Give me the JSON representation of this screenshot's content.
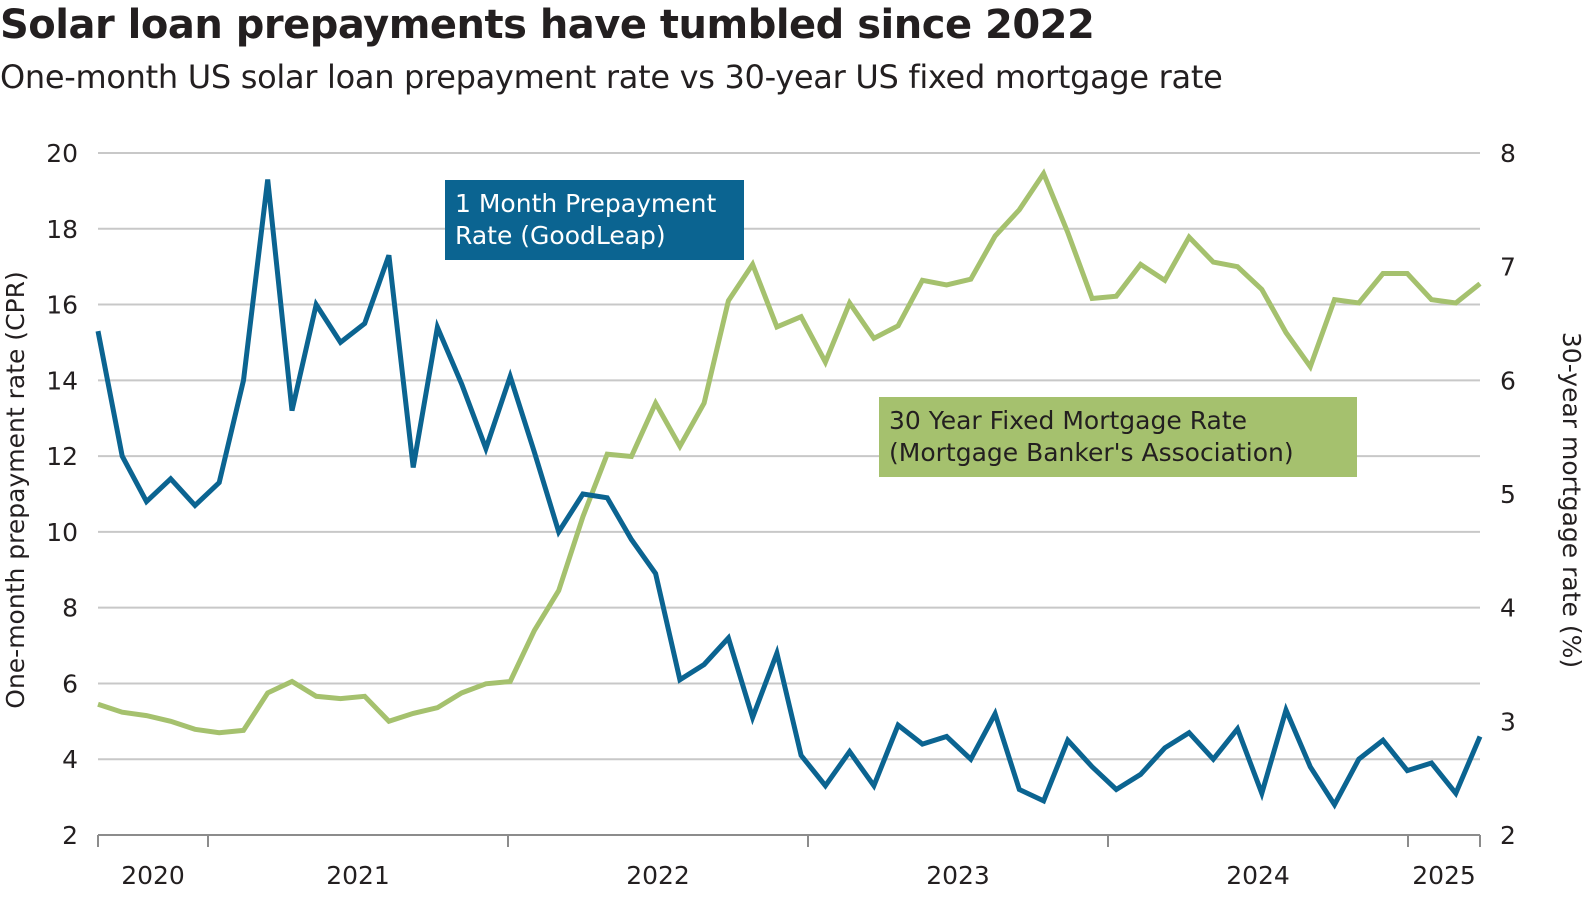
{
  "title": "Solar loan prepayments have tumbled since 2022",
  "subtitle": "One-month US solar loan prepayment rate vs 30-year US fixed mortgage rate",
  "legend": {
    "prepayment": "1 Month Prepayment\nRate (GoodLeap)",
    "mortgage": "30 Year Fixed Mortgage Rate\n(Mortgage Banker's Association)"
  },
  "colors": {
    "prepayment": "#0b6491",
    "mortgage": "#a5c16e",
    "grid": "#c8c8c8",
    "axis": "#8c8c8c"
  },
  "chart_data": {
    "type": "line",
    "ylabel_left": "One-month prepayment rate (CPR)",
    "ylabel_right": "30-year mortgage rate (%)",
    "ylim_left": [
      2,
      20
    ],
    "ylim_right": [
      2,
      8
    ],
    "yticks_left": [
      "20",
      "18",
      "16",
      "14",
      "12",
      "10",
      "8",
      "6",
      "4",
      "2"
    ],
    "yticks_right": [
      "8",
      "7",
      "6",
      "5",
      "4",
      "3",
      "2"
    ],
    "xticks": [
      "2020",
      "2021",
      "2022",
      "2023",
      "2024",
      "2025"
    ],
    "grid": true,
    "series": [
      {
        "name": "1 Month Prepayment Rate (GoodLeap)",
        "axis": "left",
        "values": [
          15.3,
          12.0,
          10.8,
          11.4,
          10.7,
          11.3,
          14.0,
          19.3,
          13.2,
          16.0,
          15.0,
          15.5,
          17.3,
          11.7,
          15.4,
          13.9,
          12.2,
          14.1,
          12.1,
          10.0,
          11.0,
          10.9,
          9.8,
          8.9,
          6.1,
          6.5,
          7.2,
          5.1,
          6.8,
          4.1,
          3.3,
          4.2,
          3.3,
          4.9,
          4.4,
          4.6,
          4.0,
          5.2,
          3.2,
          2.9,
          4.5,
          3.8,
          3.2,
          3.6,
          4.3,
          4.7,
          4.0,
          4.8,
          3.1,
          5.3,
          3.8,
          2.8,
          4.0,
          4.5,
          3.7,
          3.9,
          3.1,
          4.6
        ]
      },
      {
        "name": "30 Year Fixed Mortgage Rate (Mortgage Banker's Association)",
        "axis": "right",
        "values": [
          3.15,
          3.08,
          3.05,
          3.0,
          2.93,
          2.9,
          2.92,
          3.25,
          3.35,
          3.22,
          3.2,
          3.22,
          3.0,
          3.07,
          3.12,
          3.25,
          3.33,
          3.35,
          3.8,
          4.15,
          4.8,
          5.35,
          5.33,
          5.8,
          5.42,
          5.8,
          6.7,
          7.02,
          6.47,
          6.56,
          6.16,
          6.68,
          6.37,
          6.48,
          6.88,
          6.84,
          6.89,
          7.27,
          7.5,
          7.82,
          7.3,
          6.72,
          6.74,
          7.02,
          6.88,
          7.26,
          7.04,
          7.0,
          6.8,
          6.42,
          6.12,
          6.71,
          6.68,
          6.94,
          6.94,
          6.71,
          6.68,
          6.85
        ]
      }
    ]
  }
}
